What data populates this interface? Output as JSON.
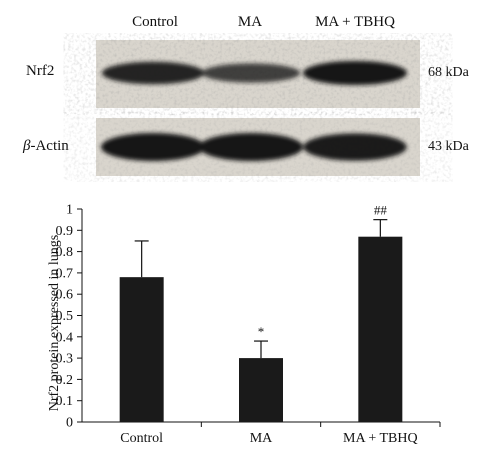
{
  "blot": {
    "lanes": [
      "Control",
      "MA",
      "MA + TBHQ"
    ],
    "rows": [
      {
        "label": "Nrf2",
        "mw": "68 kDa",
        "intensity": [
          0.85,
          0.55,
          1.0
        ]
      },
      {
        "label_prefix": "β",
        "label_suffix": "-Actin",
        "mw": "43 kDa",
        "intensity": [
          1.0,
          1.0,
          0.95
        ]
      }
    ],
    "colors": {
      "panel": "#d8d4cc",
      "band": "#151515"
    }
  },
  "chart_data": {
    "type": "bar",
    "categories": [
      "Control",
      "MA",
      "MA + TBHQ"
    ],
    "values": [
      0.68,
      0.3,
      0.87
    ],
    "errors": [
      0.17,
      0.08,
      0.08
    ],
    "significance": [
      "",
      "*",
      "##"
    ],
    "ylabel": "Nrf2 protein expressed in lungs",
    "ylim": [
      0,
      1
    ],
    "yticks": [
      "0",
      "0.1",
      "0.2",
      "0.3",
      "0.4",
      "0.5",
      "0.6",
      "0.7",
      "0.8",
      "0.9",
      "1"
    ],
    "grid": false,
    "bar_color": "#1a1a1a"
  }
}
